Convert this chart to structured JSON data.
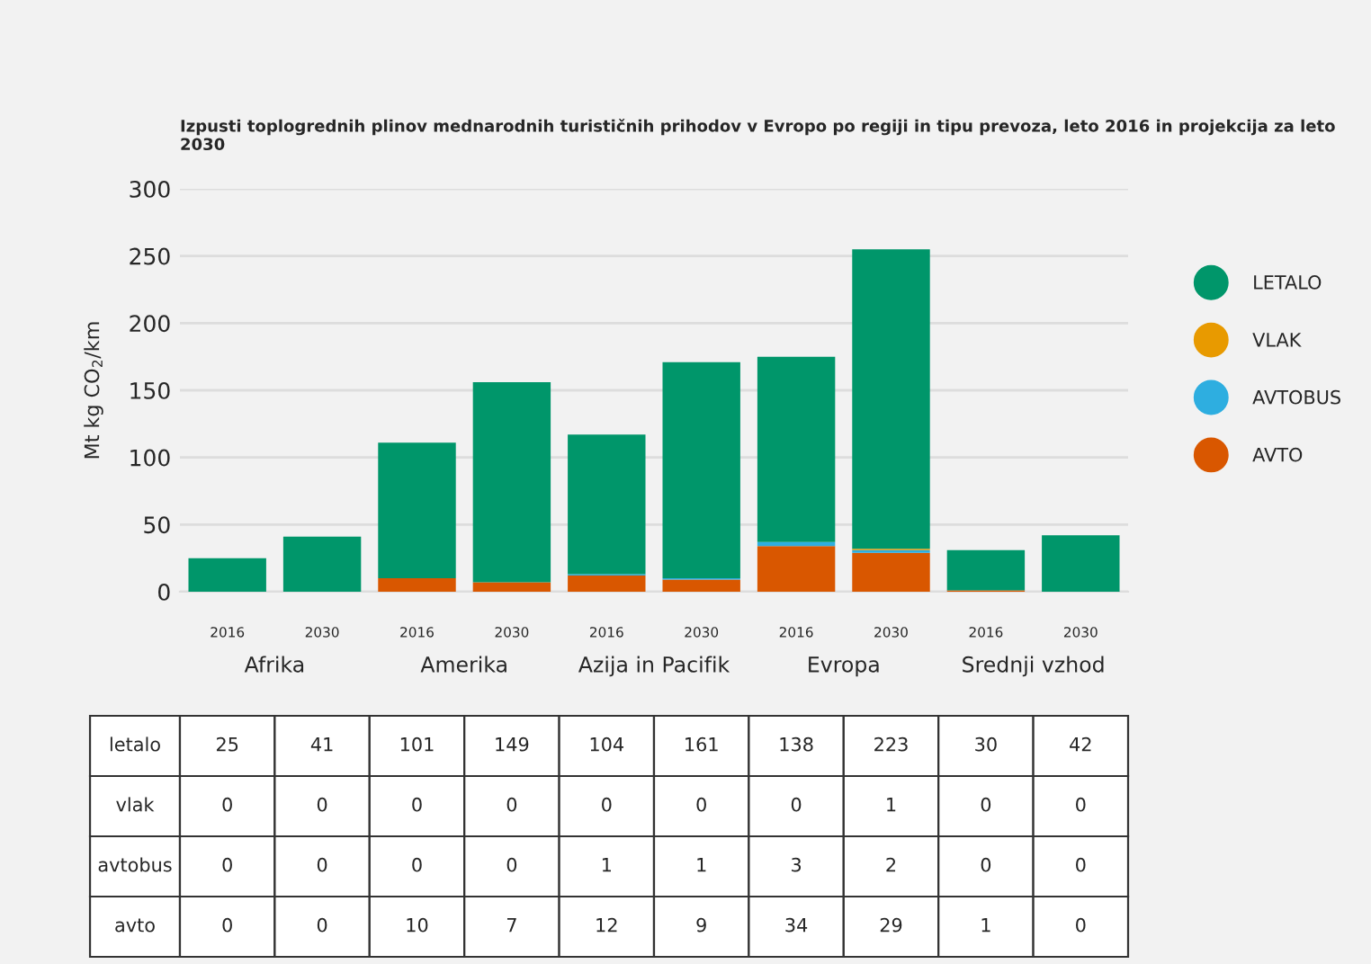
{
  "chart_data": {
    "type": "bar",
    "title": "Izpusti toplogrednih plinov mednarodnih turističnih prihodov v Evropo po regiji in tipu prevoza, leto 2016 in projekcija za leto 2030",
    "ylabel": "Mt kg CO$_{2}$/km",
    "categories": [
      "2016",
      "2030",
      "2016",
      "2030",
      "2016",
      "2030",
      "2016",
      "2030",
      "2016",
      "2030"
    ],
    "annotations": [
      "Afrika",
      "Amerika",
      "Azija in Pacifik",
      "Evropa",
      "Srednji vzhod",
      "letalo",
      "vlak",
      "avtobus",
      "avto"
    ],
    "stacked": true,
    "series": [
      {
        "name": "AVTO",
        "color": "#d95700",
        "values": [
          0,
          0,
          10,
          7,
          12,
          9,
          34,
          29,
          1,
          0
        ]
      },
      {
        "name": "AVTOBUS",
        "color": "#2eaee0",
        "values": [
          0,
          0,
          0,
          0,
          1,
          1,
          3,
          2,
          0,
          0
        ]
      },
      {
        "name": "VLAK",
        "color": "#e89a00",
        "values": [
          0,
          0,
          0,
          0,
          0,
          0,
          0,
          1,
          0,
          0
        ]
      },
      {
        "name": "LETALO",
        "color": "#00966a",
        "values": [
          25,
          41,
          101,
          149,
          104,
          161,
          138,
          223,
          30,
          42
        ]
      }
    ],
    "ylim": [
      0,
      300
    ],
    "yticks": [
      0,
      50,
      100,
      150,
      200,
      250,
      300
    ],
    "grid": "y",
    "legend": "right",
    "data_labels": true
  }
}
